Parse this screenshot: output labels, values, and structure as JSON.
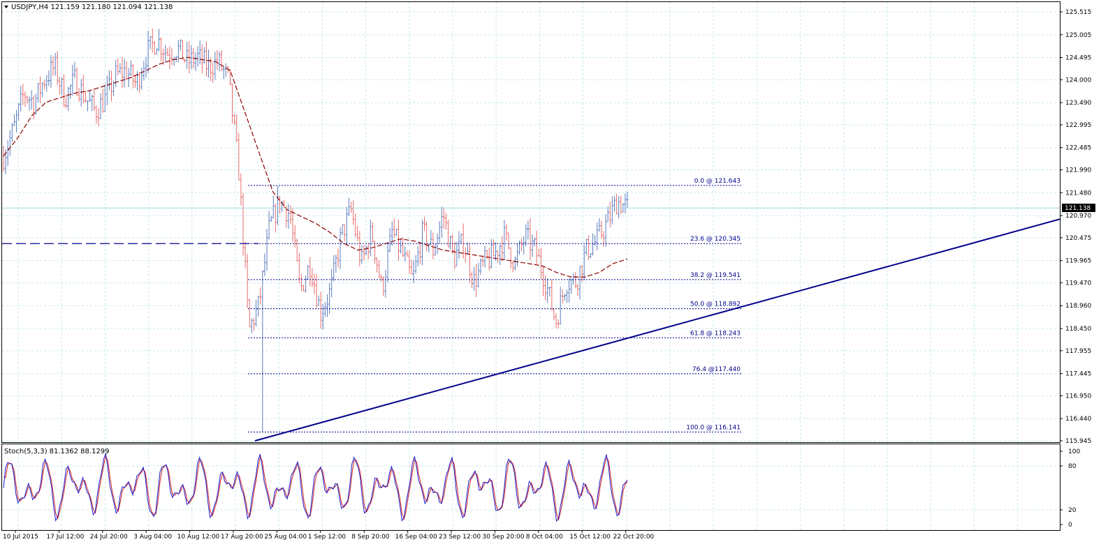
{
  "chart_data": {
    "type": "candlestick",
    "symbol_line": "USDJPY,H4  121.159 121.180 121.094 121.138",
    "current_price": "121.138",
    "price_axis": {
      "range": [
        115.945,
        125.8
      ],
      "ticks": [
        "125.515",
        "125.005",
        "124.495",
        "124.000",
        "123.490",
        "122.995",
        "122.485",
        "121.990",
        "121.480",
        "120.970",
        "120.475",
        "119.965",
        "119.470",
        "118.960",
        "118.450",
        "117.955",
        "117.445",
        "116.950",
        "116.440",
        "115.945"
      ]
    },
    "time_labels": [
      "10 Jul 2015",
      "17 Jul 12:00",
      "24 Jul 20:00",
      "3 Aug 04:00",
      "10 Aug 12:00",
      "17 Aug 20:00",
      "25 Aug 04:00",
      "1 Sep 12:00",
      "8 Sep 20:00",
      "16 Sep 04:00",
      "23 Sep 12:00",
      "30 Sep 20:00",
      "8 Oct 04:00",
      "15 Oct 12:00",
      "22 Oct 20:00"
    ],
    "fibonacci": [
      {
        "label": "0.0 @ 121.643",
        "price": 121.643
      },
      {
        "label": "23.6 @ 120.345",
        "price": 120.345
      },
      {
        "label": "38.2 @ 119.541",
        "price": 119.541
      },
      {
        "label": "50.0 @ 118.892",
        "price": 118.892
      },
      {
        "label": "61.8 @ 118.243",
        "price": 118.243
      },
      {
        "label": "76.4 @117.440",
        "price": 117.44
      },
      {
        "label": "100.0 @ 116.141",
        "price": 116.141
      }
    ],
    "horizontal_level": 120.345,
    "trendline": {
      "start_price": 115.945,
      "end_price": 120.89
    },
    "close_path": [
      122.3,
      122.9,
      123.7,
      123.5,
      124.0,
      124.3,
      123.6,
      124.0,
      123.6,
      123.3,
      123.6,
      124.1,
      124.2,
      123.9,
      124.6,
      124.9,
      124.6,
      124.7,
      124.4,
      124.5,
      124.3,
      124.4,
      124.0,
      122.0,
      118.4,
      119.0,
      120.7,
      121.3,
      121.0,
      119.3,
      119.9,
      118.8,
      119.3,
      120.5,
      121.1,
      119.9,
      120.6,
      119.3,
      120.6,
      120.1,
      119.5,
      120.6,
      120.2,
      121.0,
      120.0,
      120.4,
      119.5,
      119.9,
      120.1,
      120.5,
      119.9,
      120.5,
      120.2,
      119.5,
      118.6,
      119.5,
      119.5,
      120.2,
      120.4,
      120.8,
      121.3,
      121.138
    ],
    "sma_path": [
      122.3,
      122.7,
      123.2,
      123.5,
      123.6,
      123.7,
      123.75,
      123.85,
      123.95,
      124.05,
      124.2,
      124.35,
      124.45,
      124.5,
      124.45,
      124.4,
      124.2,
      123.3,
      122.4,
      121.5,
      121.1,
      120.95,
      120.8,
      120.6,
      120.35,
      120.2,
      120.25,
      120.35,
      120.45,
      120.4,
      120.3,
      120.2,
      120.15,
      120.1,
      120.05,
      120.0,
      119.95,
      119.9,
      119.85,
      119.7,
      119.6,
      119.6,
      119.7,
      119.9,
      120.0
    ],
    "stochastic": {
      "label": "Stoch(5,3,3) 81.1362 88.1299",
      "ticks": [
        "100",
        "80",
        "20",
        "0"
      ]
    },
    "colors": {
      "bull": "#5a7cbf",
      "bear": "#e86a6a",
      "sma": "#8b0000",
      "trend": "#00008b",
      "fib": "#00008b",
      "grid": "#c3e8ee",
      "stoch_main": "#1a1acc",
      "stoch_signal": "#d42020"
    }
  }
}
